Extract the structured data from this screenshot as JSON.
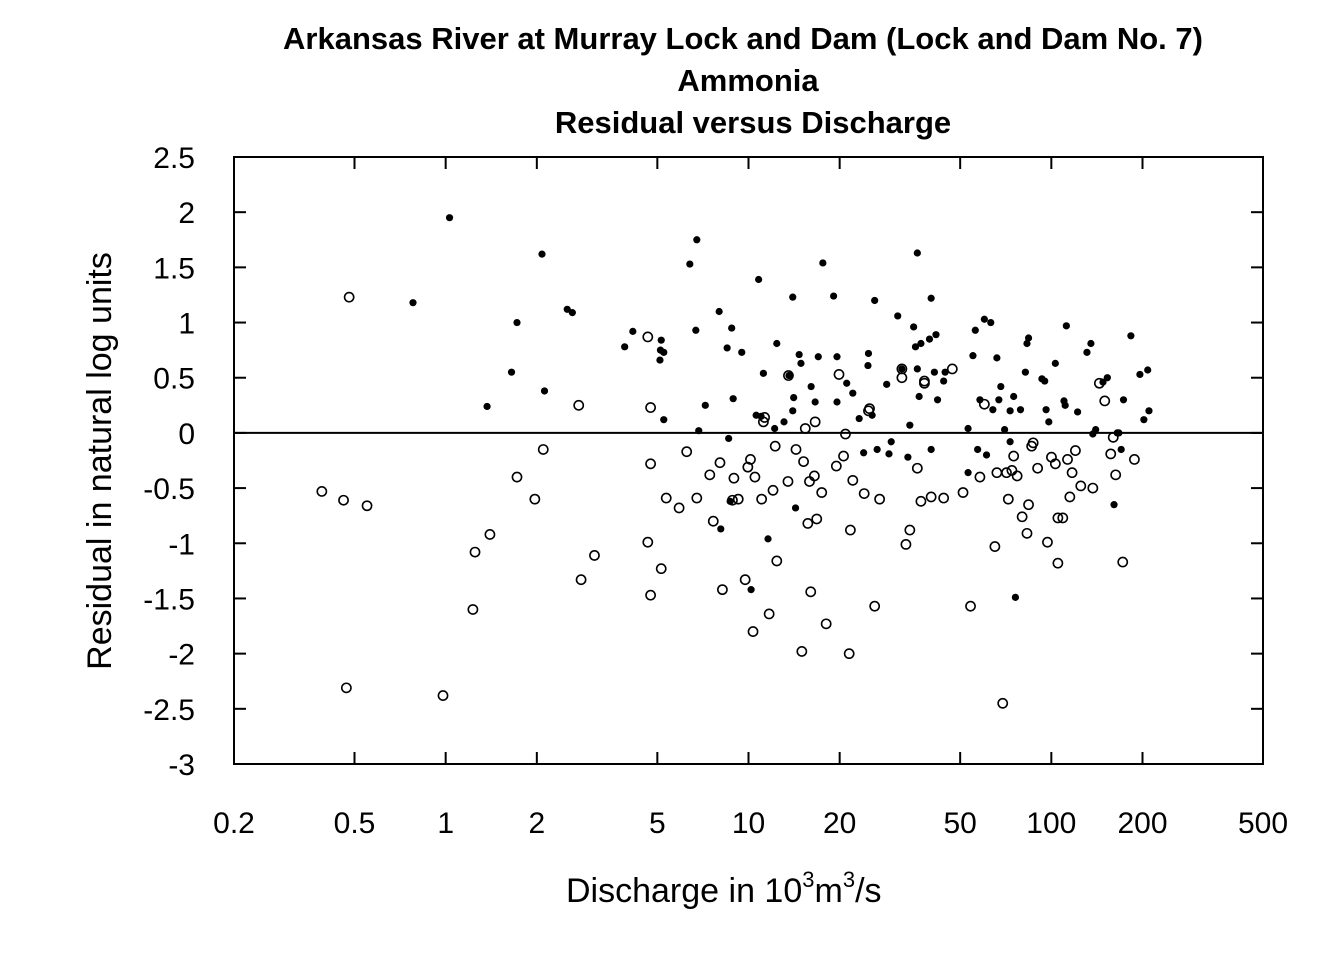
{
  "chart_data": {
    "type": "scatter",
    "title": "Arkansas River at Murray Lock and Dam (Lock and Dam No. 7)",
    "subtitle_lines": [
      "Ammonia",
      "Residual versus Discharge"
    ],
    "xlabel_parts": {
      "text": "Discharge in 10",
      "sup1": "3",
      "mid": "m",
      "sup2": "3",
      "tail": "/s"
    },
    "ylabel": "Residual in natural log units",
    "x_scale": "log",
    "xlim": [
      0.2,
      500
    ],
    "ylim": [
      -3,
      2.5
    ],
    "x_ticks": [
      {
        "value": 0.2,
        "label": "0.2"
      },
      {
        "value": 0.5,
        "label": "0.5"
      },
      {
        "value": 1,
        "label": "1"
      },
      {
        "value": 2,
        "label": "2"
      },
      {
        "value": 5,
        "label": "5"
      },
      {
        "value": 10,
        "label": "10"
      },
      {
        "value": 20,
        "label": "20"
      },
      {
        "value": 50,
        "label": "50"
      },
      {
        "value": 100,
        "label": "100"
      },
      {
        "value": 200,
        "label": "200"
      },
      {
        "value": 500,
        "label": "500"
      }
    ],
    "y_ticks": [
      {
        "value": 2.5,
        "label": "2.5"
      },
      {
        "value": 2,
        "label": "2"
      },
      {
        "value": 1.5,
        "label": "1.5"
      },
      {
        "value": 1,
        "label": "1"
      },
      {
        "value": 0.5,
        "label": "0.5"
      },
      {
        "value": 0,
        "label": "0"
      },
      {
        "value": -0.5,
        "label": "-0.5"
      },
      {
        "value": -1,
        "label": "-1"
      },
      {
        "value": -1.5,
        "label": "-1.5"
      },
      {
        "value": -2,
        "label": "-2"
      },
      {
        "value": -2.5,
        "label": "-2.5"
      },
      {
        "value": -3,
        "label": "-3"
      }
    ],
    "reference_line_y": 0,
    "grid": false,
    "legend": "none",
    "series": [
      {
        "marker": "filled-circle",
        "points": [
          [
            0.78,
            1.18
          ],
          [
            1.03,
            1.95
          ],
          [
            1.37,
            0.24
          ],
          [
            1.65,
            0.55
          ],
          [
            1.72,
            1.0
          ],
          [
            2.08,
            1.62
          ],
          [
            2.12,
            0.38
          ],
          [
            2.52,
            1.12
          ],
          [
            2.62,
            1.09
          ],
          [
            3.9,
            0.78
          ],
          [
            4.15,
            0.92
          ],
          [
            5.15,
            0.84
          ],
          [
            5.12,
            0.75
          ],
          [
            5.25,
            0.73
          ],
          [
            5.1,
            0.66
          ],
          [
            5.25,
            0.12
          ],
          [
            6.4,
            1.53
          ],
          [
            6.75,
            1.75
          ],
          [
            6.7,
            0.93
          ],
          [
            6.85,
            0.02
          ],
          [
            7.2,
            0.25
          ],
          [
            8.0,
            1.1
          ],
          [
            8.5,
            0.77
          ],
          [
            8.8,
            0.95
          ],
          [
            8.9,
            0.31
          ],
          [
            8.6,
            -0.05
          ],
          [
            8.1,
            -0.87
          ],
          [
            9.5,
            0.73
          ],
          [
            8.7,
            -0.62
          ],
          [
            10.2,
            -1.42
          ],
          [
            10.6,
            0.16
          ],
          [
            10.8,
            1.39
          ],
          [
            11.2,
            0.54
          ],
          [
            11.0,
            0.15
          ],
          [
            11.6,
            -0.96
          ],
          [
            12.2,
            0.04
          ],
          [
            12.4,
            0.81
          ],
          [
            13.1,
            0.1
          ],
          [
            13.6,
            0.52
          ],
          [
            14.0,
            1.23
          ],
          [
            14.1,
            0.32
          ],
          [
            14.0,
            0.2
          ],
          [
            14.7,
            0.71
          ],
          [
            14.9,
            0.63
          ],
          [
            14.3,
            -0.68
          ],
          [
            16.1,
            0.42
          ],
          [
            16.6,
            0.28
          ],
          [
            17.0,
            0.69
          ],
          [
            17.6,
            1.54
          ],
          [
            19.1,
            1.24
          ],
          [
            19.6,
            0.69
          ],
          [
            19.6,
            0.28
          ],
          [
            21.1,
            0.45
          ],
          [
            22.1,
            0.36
          ],
          [
            23.2,
            0.13
          ],
          [
            24.0,
            -0.18
          ],
          [
            24.9,
            0.72
          ],
          [
            24.8,
            0.61
          ],
          [
            25.6,
            0.16
          ],
          [
            26.1,
            1.2
          ],
          [
            26.6,
            -0.15
          ],
          [
            28.6,
            0.44
          ],
          [
            29.1,
            -0.19
          ],
          [
            29.6,
            -0.08
          ],
          [
            31.1,
            1.06
          ],
          [
            32.1,
            0.58
          ],
          [
            33.6,
            -0.22
          ],
          [
            34.1,
            0.07
          ],
          [
            35.1,
            0.96
          ],
          [
            36.1,
            1.63
          ],
          [
            36.1,
            0.58
          ],
          [
            35.6,
            0.78
          ],
          [
            37.1,
            0.81
          ],
          [
            36.6,
            0.33
          ],
          [
            39.6,
            0.85
          ],
          [
            40.1,
            1.22
          ],
          [
            41.1,
            0.55
          ],
          [
            41.6,
            0.89
          ],
          [
            40.1,
            -0.15
          ],
          [
            42.1,
            0.3
          ],
          [
            44.1,
            0.47
          ],
          [
            44.6,
            0.55
          ],
          [
            53.1,
            0.04
          ],
          [
            53.1,
            -0.36
          ],
          [
            55.1,
            0.7
          ],
          [
            56.1,
            0.93
          ],
          [
            58.1,
            0.3
          ],
          [
            57.1,
            -0.15
          ],
          [
            60.1,
            1.03
          ],
          [
            61.1,
            -0.2
          ],
          [
            63.1,
            1.0
          ],
          [
            64.1,
            0.21
          ],
          [
            66.1,
            0.68
          ],
          [
            67.1,
            0.3
          ],
          [
            68.1,
            0.42
          ],
          [
            70.1,
            0.03
          ],
          [
            73.1,
            -0.08
          ],
          [
            73.1,
            0.2
          ],
          [
            75.1,
            0.33
          ],
          [
            76.1,
            -1.49
          ],
          [
            79.1,
            0.21
          ],
          [
            82.1,
            0.55
          ],
          [
            83.1,
            0.81
          ],
          [
            84.1,
            0.86
          ],
          [
            93.1,
            0.49
          ],
          [
            95.1,
            0.47
          ],
          [
            96.1,
            0.21
          ],
          [
            98.1,
            0.1
          ],
          [
            103.1,
            0.63
          ],
          [
            110.1,
            0.29
          ],
          [
            111.1,
            0.25
          ],
          [
            112.1,
            0.97
          ],
          [
            122.1,
            0.19
          ],
          [
            131.1,
            0.73
          ],
          [
            135.1,
            0.81
          ],
          [
            137.1,
            -0.01
          ],
          [
            140.1,
            0.03
          ],
          [
            148.1,
            0.46
          ],
          [
            153.1,
            0.5
          ],
          [
            161.1,
            -0.65
          ],
          [
            165.1,
            0.0
          ],
          [
            167.1,
            0.0
          ],
          [
            170.1,
            -0.15
          ],
          [
            173.1,
            0.3
          ],
          [
            183.1,
            0.88
          ],
          [
            196.1,
            0.53
          ],
          [
            202.1,
            0.12
          ],
          [
            208.1,
            0.57
          ],
          [
            210.1,
            0.2
          ]
        ]
      },
      {
        "marker": "open-circle",
        "points": [
          [
            0.39,
            -0.53
          ],
          [
            0.46,
            -0.61
          ],
          [
            0.47,
            -2.31
          ],
          [
            0.48,
            1.23
          ],
          [
            0.55,
            -0.66
          ],
          [
            0.98,
            -2.38
          ],
          [
            1.23,
            -1.6
          ],
          [
            1.25,
            -1.08
          ],
          [
            1.4,
            -0.92
          ],
          [
            1.72,
            -0.4
          ],
          [
            1.97,
            -0.6
          ],
          [
            2.1,
            -0.15
          ],
          [
            2.75,
            0.25
          ],
          [
            2.8,
            -1.33
          ],
          [
            3.1,
            -1.11
          ],
          [
            4.65,
            0.87
          ],
          [
            4.65,
            -0.99
          ],
          [
            4.75,
            -0.28
          ],
          [
            4.75,
            0.23
          ],
          [
            4.75,
            -1.47
          ],
          [
            5.15,
            -1.23
          ],
          [
            5.35,
            -0.59
          ],
          [
            5.9,
            -0.68
          ],
          [
            6.25,
            -0.17
          ],
          [
            6.75,
            -0.59
          ],
          [
            7.45,
            -0.38
          ],
          [
            7.65,
            -0.8
          ],
          [
            8.05,
            -0.27
          ],
          [
            8.2,
            -1.42
          ],
          [
            8.85,
            -0.61
          ],
          [
            8.95,
            -0.41
          ],
          [
            9.25,
            -0.6
          ],
          [
            9.75,
            -1.33
          ],
          [
            9.95,
            -0.31
          ],
          [
            10.15,
            -0.24
          ],
          [
            10.35,
            -1.8
          ],
          [
            10.5,
            -0.4
          ],
          [
            11.05,
            -0.6
          ],
          [
            11.2,
            0.1
          ],
          [
            11.3,
            0.14
          ],
          [
            11.7,
            -1.64
          ],
          [
            12.05,
            -0.52
          ],
          [
            12.25,
            -0.12
          ],
          [
            12.4,
            -1.16
          ],
          [
            13.5,
            -0.44
          ],
          [
            13.55,
            0.52
          ],
          [
            14.35,
            -0.15
          ],
          [
            15.0,
            -1.98
          ],
          [
            15.2,
            -0.26
          ],
          [
            15.4,
            0.04
          ],
          [
            15.7,
            -0.82
          ],
          [
            15.9,
            -0.44
          ],
          [
            16.05,
            -1.44
          ],
          [
            16.6,
            0.1
          ],
          [
            16.5,
            -0.39
          ],
          [
            16.8,
            -0.78
          ],
          [
            17.45,
            -0.54
          ],
          [
            18.05,
            -1.73
          ],
          [
            19.5,
            -0.3
          ],
          [
            19.9,
            0.53
          ],
          [
            20.6,
            -0.21
          ],
          [
            20.9,
            -0.01
          ],
          [
            21.5,
            -2.0
          ],
          [
            21.7,
            -0.88
          ],
          [
            22.1,
            -0.43
          ],
          [
            24.1,
            -0.55
          ],
          [
            24.9,
            0.2
          ],
          [
            25.1,
            0.22
          ],
          [
            26.1,
            -1.57
          ],
          [
            27.1,
            -0.6
          ],
          [
            32.1,
            0.58
          ],
          [
            32.1,
            0.5
          ],
          [
            33.1,
            -1.01
          ],
          [
            34.1,
            -0.88
          ],
          [
            36.1,
            -0.32
          ],
          [
            37.1,
            -0.62
          ],
          [
            38.1,
            0.45
          ],
          [
            38.1,
            0.47
          ],
          [
            40.1,
            -0.58
          ],
          [
            44.1,
            -0.59
          ],
          [
            47.1,
            0.58
          ],
          [
            51.1,
            -0.54
          ],
          [
            54.1,
            -1.57
          ],
          [
            58.1,
            -0.4
          ],
          [
            60.1,
            0.26
          ],
          [
            65.1,
            -1.03
          ],
          [
            66.1,
            -0.36
          ],
          [
            69.1,
            -2.45
          ],
          [
            71.1,
            -0.36
          ],
          [
            72.1,
            -0.6
          ],
          [
            74.1,
            -0.34
          ],
          [
            75.1,
            -0.21
          ],
          [
            77.1,
            -0.39
          ],
          [
            80.1,
            -0.76
          ],
          [
            83.1,
            -0.91
          ],
          [
            84.1,
            -0.65
          ],
          [
            86.1,
            -0.12
          ],
          [
            87.1,
            -0.09
          ],
          [
            90.1,
            -0.32
          ],
          [
            97.1,
            -0.99
          ],
          [
            100.1,
            -0.22
          ],
          [
            103.1,
            -0.28
          ],
          [
            105.1,
            -1.18
          ],
          [
            105.1,
            -0.77
          ],
          [
            109.1,
            -0.77
          ],
          [
            113.1,
            -0.24
          ],
          [
            115.1,
            -0.58
          ],
          [
            117.1,
            -0.36
          ],
          [
            120.1,
            -0.16
          ],
          [
            125.1,
            -0.48
          ],
          [
            137.1,
            -0.5
          ],
          [
            144.1,
            0.45
          ],
          [
            150.1,
            0.29
          ],
          [
            157.1,
            -0.19
          ],
          [
            160.1,
            -0.04
          ],
          [
            163.1,
            -0.38
          ],
          [
            172.1,
            -1.17
          ],
          [
            188.1,
            -0.24
          ]
        ]
      }
    ]
  }
}
